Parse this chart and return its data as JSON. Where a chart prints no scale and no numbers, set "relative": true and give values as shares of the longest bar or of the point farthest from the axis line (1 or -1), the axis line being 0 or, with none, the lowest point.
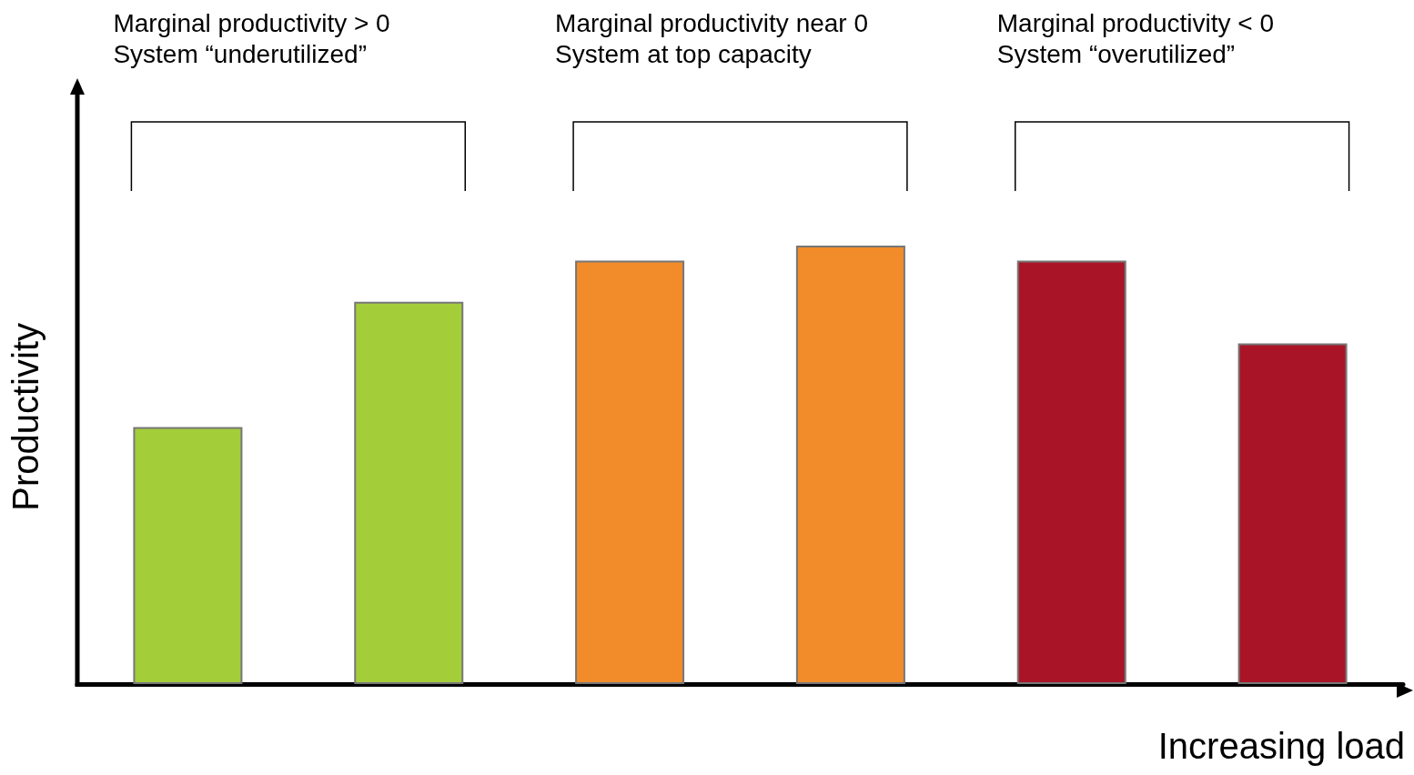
{
  "chart_data": {
    "type": "bar",
    "relative": true,
    "xlabel": "Increasing load",
    "ylabel": "Productivity",
    "categories": [
      null,
      null,
      null,
      null,
      null,
      null
    ],
    "values": [
      0.586,
      0.872,
      0.966,
      1,
      0.966,
      0.777
    ],
    "colors": [
      "#a4cd3a",
      "#a4cd3a",
      "#f28c2a",
      "#f28c2a",
      "#a91527",
      "#a91527"
    ],
    "annotations": [
      "Marginal productivity > 0\nSystem “underutilized”",
      "Marginal productivity near 0\nSystem at top capacity",
      "Marginal productivity < 0\nSystem “overutilized”"
    ],
    "grid": false
  }
}
